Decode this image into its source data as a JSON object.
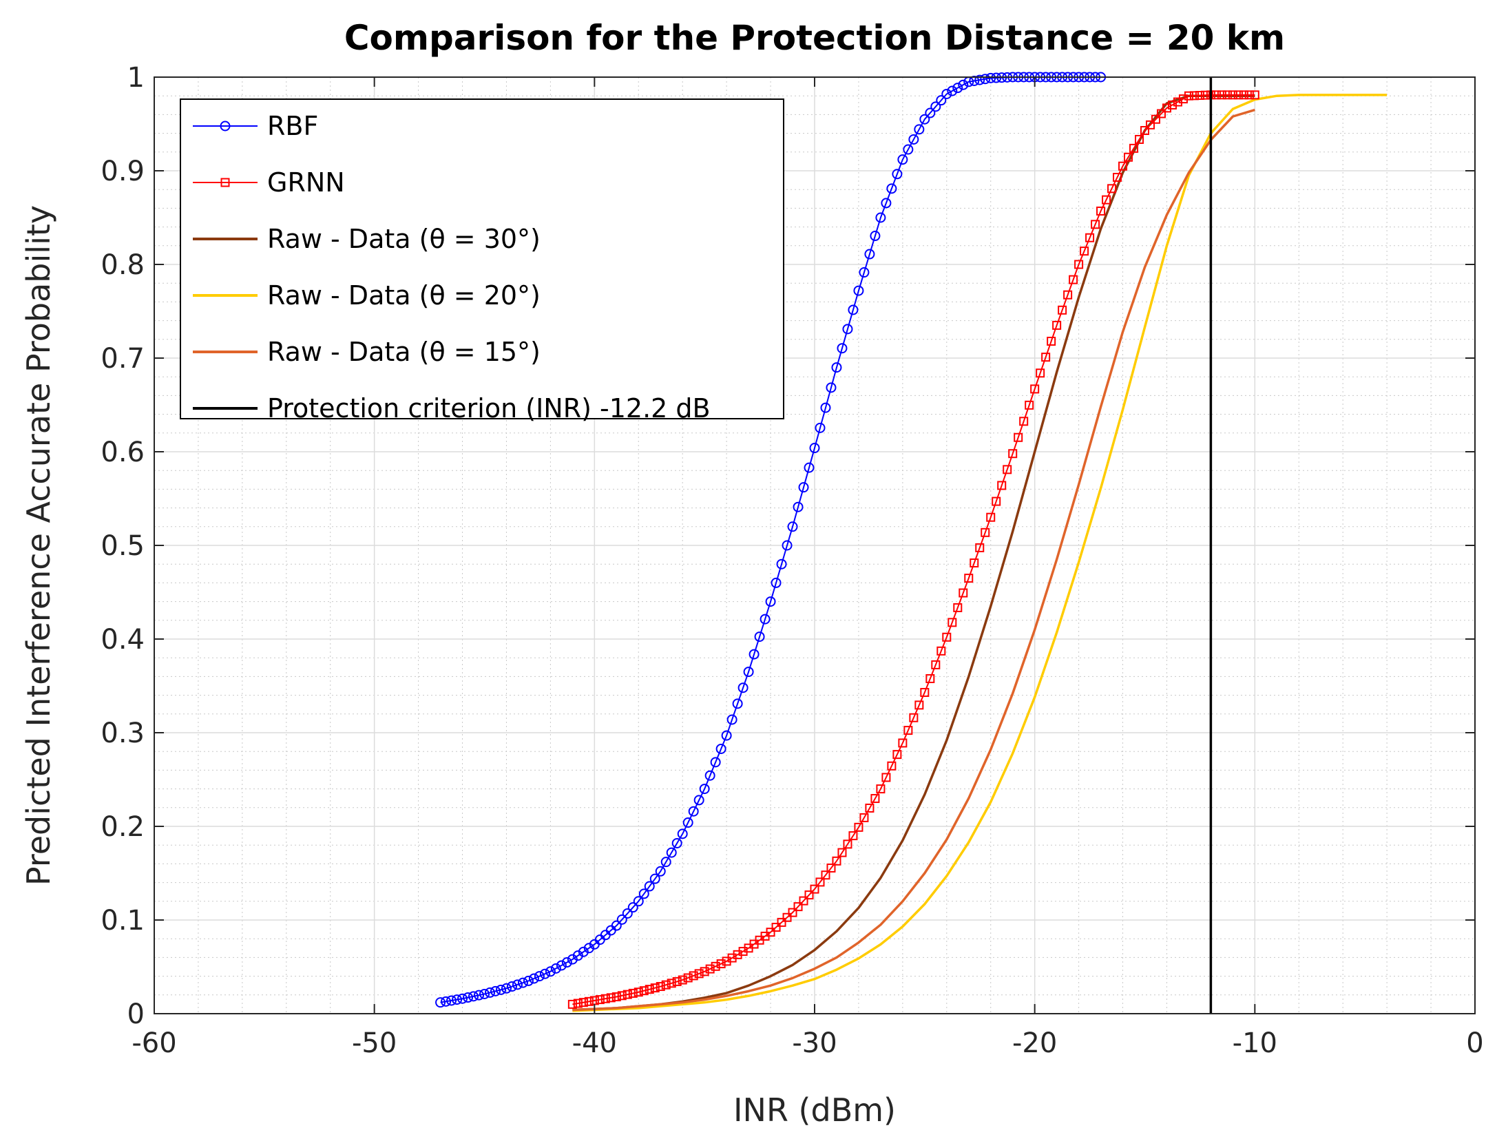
{
  "chart_data": {
    "type": "line",
    "title": "Comparison for the Protection Distance = 20 km",
    "xlabel": "INR (dBm)",
    "ylabel": "Predicted Interference Accurate Probability",
    "xlim": [
      -60,
      0
    ],
    "ylim": [
      0,
      1
    ],
    "xticks": [
      -60,
      -50,
      -40,
      -30,
      -20,
      -10,
      0
    ],
    "xtick_labels": [
      "-60",
      "-50",
      "-40",
      "-30",
      "-20",
      "-10",
      "0"
    ],
    "yticks": [
      0,
      0.1,
      0.2,
      0.3,
      0.4,
      0.5,
      0.6,
      0.7,
      0.8,
      0.9,
      1
    ],
    "ytick_labels": [
      "0",
      "0.1",
      "0.2",
      "0.3",
      "0.4",
      "0.5",
      "0.6",
      "0.7",
      "0.8",
      "0.9",
      "1"
    ],
    "grid": true,
    "minor_grid": true,
    "legend_position": "top-left",
    "series": [
      {
        "name": "RBF",
        "color": "#0000ff",
        "marker": "circle",
        "x": [
          -47,
          -46,
          -45,
          -44,
          -43,
          -42,
          -41,
          -40,
          -39,
          -38,
          -37,
          -36,
          -35,
          -34,
          -33,
          -32,
          -31,
          -30,
          -29,
          -28,
          -27,
          -26,
          -25,
          -24,
          -23,
          -22,
          -21,
          -20,
          -19,
          -18,
          -17
        ],
        "y": [
          0.012,
          0.016,
          0.021,
          0.027,
          0.035,
          0.045,
          0.058,
          0.074,
          0.094,
          0.12,
          0.152,
          0.192,
          0.24,
          0.297,
          0.365,
          0.44,
          0.52,
          0.604,
          0.69,
          0.772,
          0.85,
          0.912,
          0.955,
          0.982,
          0.995,
          0.999,
          1.0,
          1.0,
          1.0,
          1.0,
          1.0
        ]
      },
      {
        "name": "GRNN",
        "color": "#ff0000",
        "marker": "square",
        "x": [
          -41,
          -40,
          -39,
          -38,
          -37,
          -36,
          -35,
          -34,
          -33,
          -32,
          -31,
          -30,
          -29,
          -28,
          -27,
          -26,
          -25,
          -24,
          -23,
          -22,
          -21,
          -20,
          -19,
          -18,
          -17,
          -16,
          -15,
          -14,
          -13,
          -12,
          -11,
          -10
        ],
        "y": [
          0.01,
          0.014,
          0.018,
          0.023,
          0.029,
          0.036,
          0.045,
          0.056,
          0.07,
          0.087,
          0.108,
          0.133,
          0.163,
          0.199,
          0.24,
          0.289,
          0.343,
          0.402,
          0.465,
          0.53,
          0.598,
          0.667,
          0.735,
          0.8,
          0.857,
          0.905,
          0.943,
          0.967,
          0.98,
          0.981,
          0.981,
          0.981
        ]
      },
      {
        "name": "Raw - Data (θ = 30°)",
        "color": "#8b3a0f",
        "marker": "none",
        "x": [
          -41,
          -40,
          -39,
          -38,
          -37,
          -36,
          -35,
          -34,
          -33,
          -32,
          -31,
          -30,
          -29,
          -28,
          -27,
          -26,
          -25,
          -24,
          -23,
          -22,
          -21,
          -20,
          -19,
          -18,
          -17,
          -16,
          -15,
          -14,
          -13,
          -12,
          -11,
          -10
        ],
        "y": [
          0.004,
          0.005,
          0.006,
          0.008,
          0.01,
          0.013,
          0.017,
          0.022,
          0.03,
          0.04,
          0.052,
          0.068,
          0.088,
          0.113,
          0.145,
          0.185,
          0.234,
          0.292,
          0.36,
          0.435,
          0.515,
          0.6,
          0.685,
          0.765,
          0.838,
          0.898,
          0.943,
          0.972,
          0.98,
          0.98,
          0.98,
          0.98
        ]
      },
      {
        "name": "Raw - Data (θ = 20°)",
        "color": "#ffcc00",
        "marker": "none",
        "x": [
          -41,
          -40,
          -39,
          -38,
          -37,
          -36,
          -35,
          -34,
          -33,
          -32,
          -31,
          -30,
          -29,
          -28,
          -27,
          -26,
          -25,
          -24,
          -23,
          -22,
          -21,
          -20,
          -19,
          -18,
          -17,
          -16,
          -15,
          -14,
          -13,
          -12,
          -11,
          -10,
          -9,
          -8,
          -7,
          -6,
          -5,
          -4
        ],
        "y": [
          0.003,
          0.004,
          0.005,
          0.006,
          0.008,
          0.01,
          0.012,
          0.015,
          0.019,
          0.024,
          0.03,
          0.037,
          0.047,
          0.059,
          0.074,
          0.093,
          0.117,
          0.147,
          0.183,
          0.226,
          0.278,
          0.338,
          0.407,
          0.482,
          0.561,
          0.645,
          0.733,
          0.82,
          0.895,
          0.94,
          0.966,
          0.976,
          0.98,
          0.981,
          0.981,
          0.981,
          0.981,
          0.981
        ]
      },
      {
        "name": "Raw - Data (θ = 15°)",
        "color": "#e0642a",
        "marker": "none",
        "x": [
          -41,
          -40,
          -39,
          -38,
          -37,
          -36,
          -35,
          -34,
          -33,
          -32,
          -31,
          -30,
          -29,
          -28,
          -27,
          -26,
          -25,
          -24,
          -23,
          -22,
          -21,
          -20,
          -19,
          -18,
          -17,
          -16,
          -15,
          -14,
          -13,
          -12,
          -11,
          -10
        ],
        "y": [
          0.004,
          0.005,
          0.006,
          0.008,
          0.01,
          0.012,
          0.015,
          0.019,
          0.024,
          0.03,
          0.038,
          0.048,
          0.06,
          0.076,
          0.095,
          0.12,
          0.15,
          0.186,
          0.23,
          0.282,
          0.342,
          0.41,
          0.485,
          0.565,
          0.648,
          0.728,
          0.797,
          0.853,
          0.898,
          0.933,
          0.958,
          0.965
        ]
      },
      {
        "name": "Protection criterion (INR) -12.2 dB",
        "color": "#000000",
        "marker": "none",
        "x": [
          -12,
          -12
        ],
        "y": [
          0,
          1
        ]
      }
    ]
  }
}
